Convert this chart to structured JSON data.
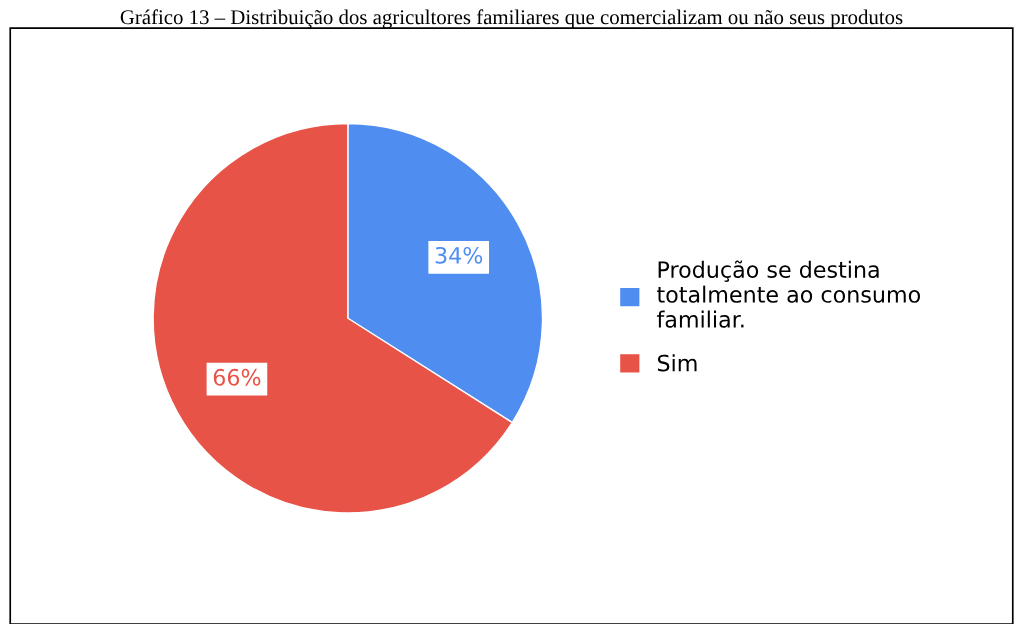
{
  "chart_data": {
    "type": "pie",
    "title": "Gráfico 13 – Distribuição dos agricultores familiares que comercializam ou não seus produtos",
    "categories": [
      "Produção se destina totalmente ao consumo familiar.",
      "Sim"
    ],
    "values": [
      34,
      66
    ],
    "colors": [
      "#4f8ef0",
      "#e85348"
    ],
    "value_labels": [
      "34%",
      "66%"
    ],
    "legend": "right"
  }
}
